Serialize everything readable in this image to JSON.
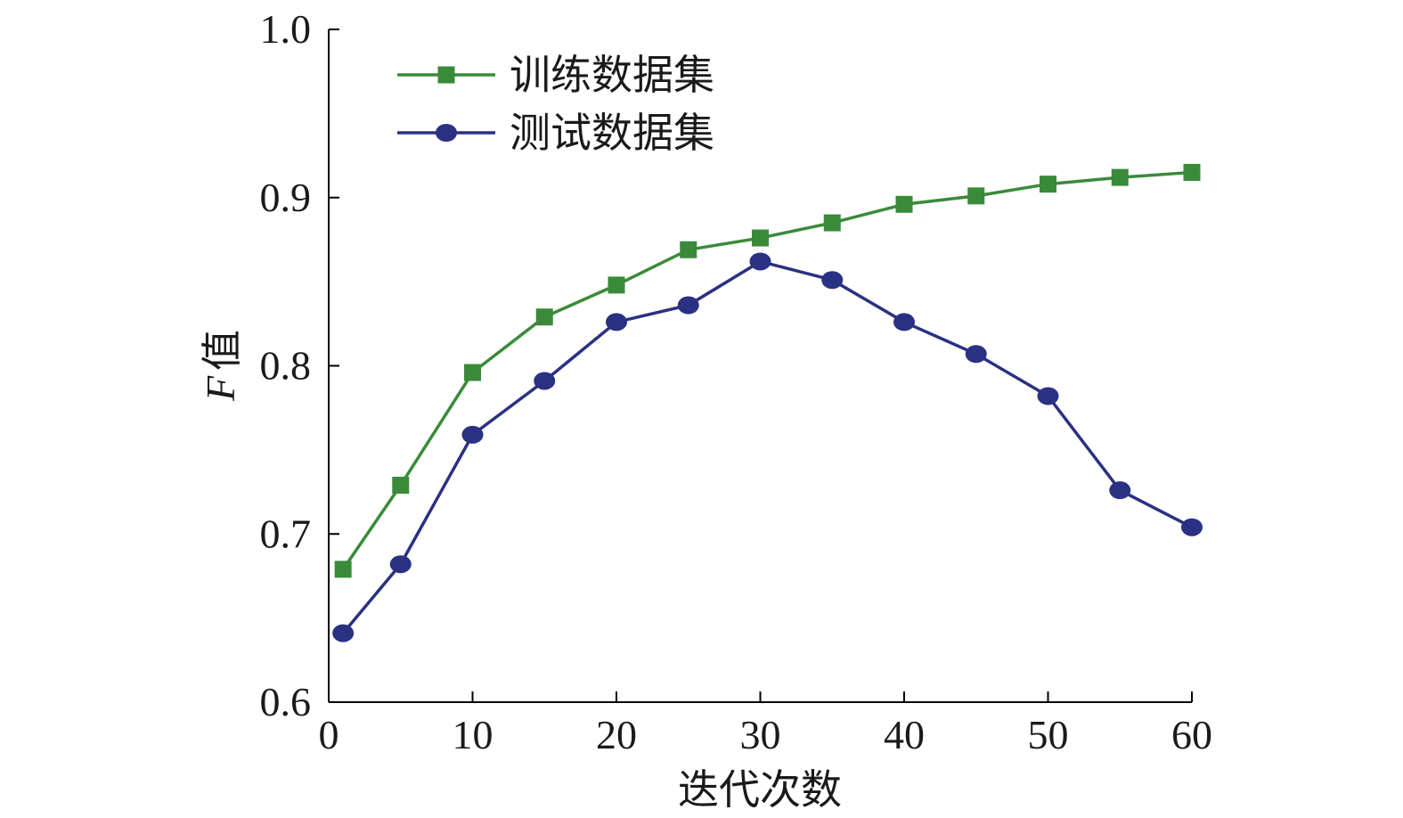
{
  "chart_data": {
    "type": "line",
    "title": "",
    "xlabel": "迭代次数",
    "ylabel_italic": "F",
    "ylabel_text": "值",
    "xlim": [
      0,
      60
    ],
    "ylim": [
      0.6,
      1.0
    ],
    "xticks": [
      0,
      10,
      20,
      30,
      40,
      50,
      60
    ],
    "yticks": [
      0.6,
      0.7,
      0.8,
      0.9,
      1.0
    ],
    "xtick_labels": [
      "0",
      "10",
      "20",
      "30",
      "40",
      "50",
      "60"
    ],
    "ytick_labels": [
      "0.6",
      "0.7",
      "0.8",
      "0.9",
      "1.0"
    ],
    "grid": false,
    "legend_position": "top-left",
    "x": [
      1,
      5,
      10,
      15,
      20,
      25,
      30,
      35,
      40,
      45,
      50,
      55,
      60
    ],
    "series": [
      {
        "name": "训练数据集",
        "color": "#3a8a3a",
        "marker": "square",
        "values": [
          0.679,
          0.729,
          0.796,
          0.829,
          0.848,
          0.869,
          0.876,
          0.885,
          0.896,
          0.901,
          0.908,
          0.912,
          0.915
        ]
      },
      {
        "name": "测试数据集",
        "color": "#2a3182",
        "marker": "circle",
        "values": [
          0.641,
          0.682,
          0.759,
          0.791,
          0.826,
          0.836,
          0.862,
          0.851,
          0.826,
          0.807,
          0.782,
          0.726,
          0.704
        ]
      }
    ]
  }
}
